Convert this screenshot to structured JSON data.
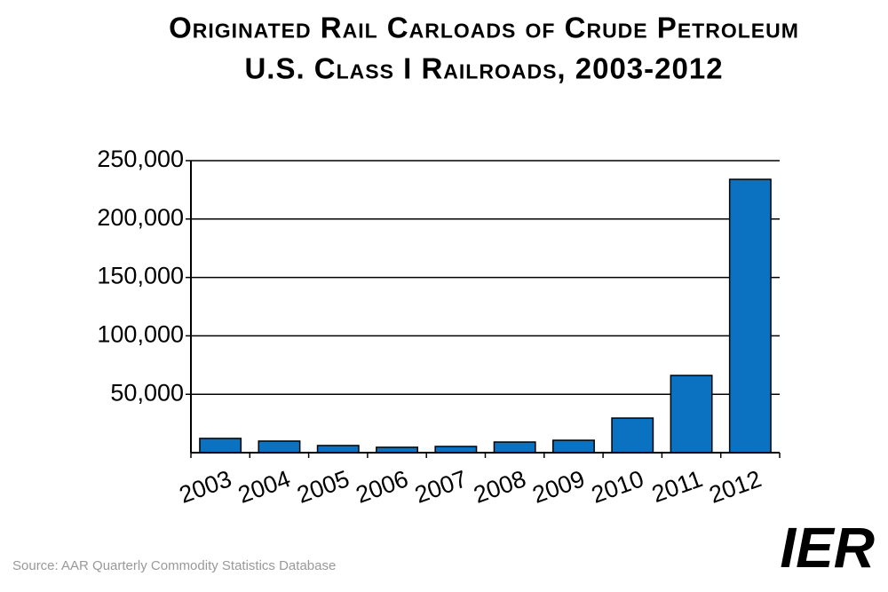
{
  "chart_data": {
    "type": "bar",
    "title": "Originated Rail Carloads of Crude Petroleum",
    "subtitle": "U.S. Class I Railroads, 2003-2012",
    "categories": [
      "2003",
      "2004",
      "2005",
      "2006",
      "2007",
      "2008",
      "2009",
      "2010",
      "2011",
      "2012"
    ],
    "values": [
      12200,
      9900,
      6100,
      4600,
      5300,
      9100,
      10600,
      29600,
      66100,
      234000
    ],
    "color": "#0a72c0",
    "ylim": [
      0,
      250000
    ],
    "yticks": [
      {
        "value": 50000,
        "label": "50,000"
      },
      {
        "value": 100000,
        "label": "100,000"
      },
      {
        "value": 150000,
        "label": "150,000"
      },
      {
        "value": 200000,
        "label": "200,000"
      },
      {
        "value": 250000,
        "label": "250,000"
      }
    ],
    "grid": true,
    "source": "Source: AAR Quarterly Commodity Statistics Database",
    "logo": "IER"
  }
}
